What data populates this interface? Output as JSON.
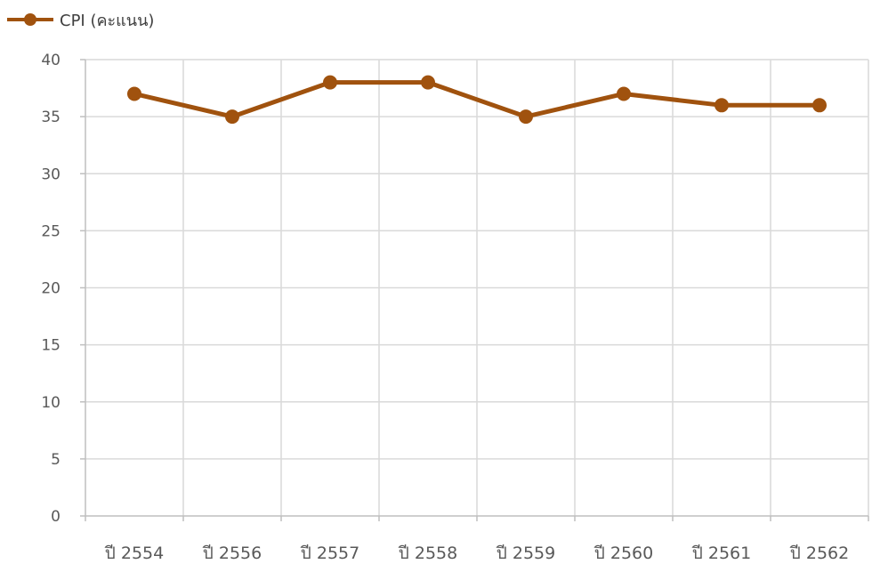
{
  "chart_data": {
    "type": "line",
    "categories": [
      "ปี 2554",
      "ปี 2556",
      "ปี 2557",
      "ปี 2558",
      "ปี 2559",
      "ปี 2560",
      "ปี 2561",
      "ปี 2562"
    ],
    "series": [
      {
        "name": "CPI (คะแนน)",
        "values": [
          37,
          35,
          38,
          38,
          35,
          37,
          36,
          36
        ]
      }
    ],
    "yticks": [
      0,
      5,
      10,
      15,
      20,
      25,
      30,
      35,
      40
    ],
    "ylim": [
      0,
      40
    ],
    "grid": true,
    "legend": "top-left",
    "colors": {
      "series": "#A0520E",
      "grid": "#D9D9D9",
      "axis": "#BFBFBF",
      "text": "#595959"
    }
  }
}
